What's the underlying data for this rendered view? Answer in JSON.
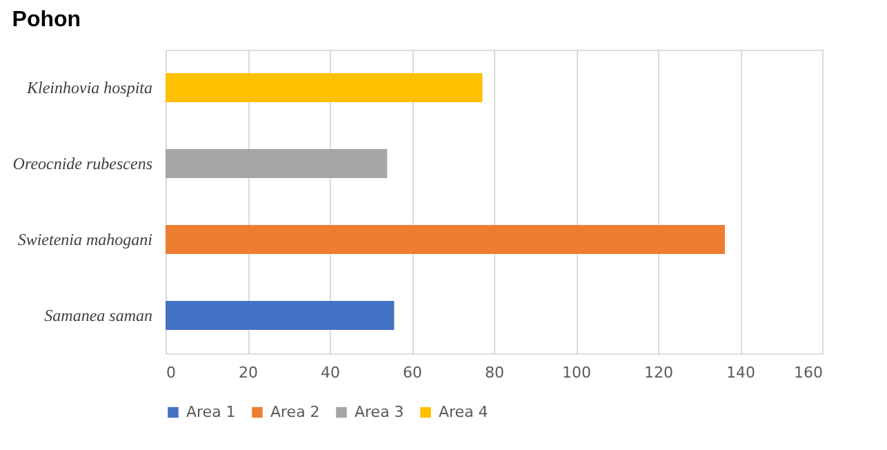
{
  "chart_data": {
    "type": "bar",
    "orientation": "horizontal",
    "title": "Pohon",
    "categories": [
      "Kleinhovia hospita",
      "Oreocnide rubescens",
      "Swietenia mahogani",
      "Samanea saman"
    ],
    "series": [
      {
        "name": "Area 1",
        "color": "#4472c4",
        "values": [
          null,
          null,
          null,
          55.7
        ]
      },
      {
        "name": "Area 2",
        "color": "#ed7d31",
        "values": [
          null,
          null,
          136.3,
          null
        ]
      },
      {
        "name": "Area 3",
        "color": "#a5a5a5",
        "values": [
          null,
          54,
          null,
          null
        ]
      },
      {
        "name": "Area 4",
        "color": "#ffc000",
        "values": [
          77.2,
          null,
          null,
          null
        ]
      }
    ],
    "xlim": [
      0,
      160
    ],
    "xticks": [
      0,
      20,
      40,
      60,
      80,
      100,
      120,
      140,
      160
    ],
    "grid": "x",
    "legend": "bottom"
  }
}
